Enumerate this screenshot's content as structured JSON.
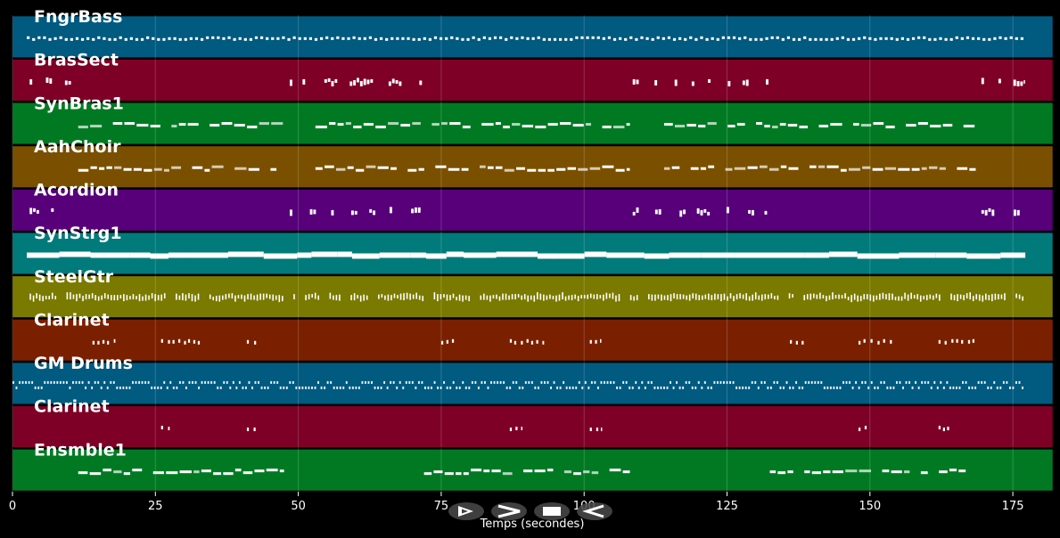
{
  "chart_data": {
    "type": "piano-roll",
    "xlabel": "Temps (secondes)",
    "xlim": [
      0,
      182
    ],
    "xticks": [
      0,
      25,
      50,
      75,
      100,
      125,
      150,
      175
    ],
    "grid": true,
    "tracks": [
      {
        "name": "FngrBass",
        "color": "#015a80",
        "segments": [
          {
            "start": 2.5,
            "end": 177,
            "kind": "bass"
          }
        ]
      },
      {
        "name": "BrasSect",
        "color": "#7e0027",
        "segments": [
          {
            "start": 3,
            "end": 10.5,
            "kind": "stabs"
          },
          {
            "start": 48.5,
            "end": 73,
            "kind": "stabs"
          },
          {
            "start": 108.5,
            "end": 134,
            "kind": "stabs"
          },
          {
            "start": 169.5,
            "end": 177,
            "kind": "stabs"
          }
        ]
      },
      {
        "name": "SynBras1",
        "color": "#007a22",
        "segments": [
          {
            "start": 11.5,
            "end": 47.5,
            "kind": "melody"
          },
          {
            "start": 53,
            "end": 108,
            "kind": "melody"
          },
          {
            "start": 114,
            "end": 168.5,
            "kind": "melody"
          }
        ]
      },
      {
        "name": "AahChoir",
        "color": "#7a5000",
        "segments": [
          {
            "start": 11.5,
            "end": 47.5,
            "kind": "melody"
          },
          {
            "start": 53,
            "end": 108,
            "kind": "melody"
          },
          {
            "start": 114,
            "end": 168.5,
            "kind": "melody"
          }
        ]
      },
      {
        "name": "Acordion",
        "color": "#57007a",
        "segments": [
          {
            "start": 3,
            "end": 10.5,
            "kind": "stabs"
          },
          {
            "start": 48.5,
            "end": 73,
            "kind": "stabs"
          },
          {
            "start": 108.5,
            "end": 134,
            "kind": "stabs"
          },
          {
            "start": 169.5,
            "end": 177,
            "kind": "stabs"
          }
        ]
      },
      {
        "name": "SynStrg1",
        "color": "#007a7a",
        "segments": [
          {
            "start": 2.5,
            "end": 177,
            "kind": "sustain"
          }
        ]
      },
      {
        "name": "SteelGtr",
        "color": "#7a7a00",
        "segments": [
          {
            "start": 3,
            "end": 177,
            "kind": "strum"
          }
        ]
      },
      {
        "name": "Clarinet",
        "color": "#7a2000",
        "segments": [
          {
            "start": 14,
            "end": 18,
            "kind": "sparse"
          },
          {
            "start": 26,
            "end": 33,
            "kind": "sparse"
          },
          {
            "start": 41,
            "end": 43,
            "kind": "sparse"
          },
          {
            "start": 75,
            "end": 78,
            "kind": "sparse"
          },
          {
            "start": 87,
            "end": 93,
            "kind": "sparse"
          },
          {
            "start": 101,
            "end": 103,
            "kind": "sparse"
          },
          {
            "start": 136,
            "end": 139,
            "kind": "sparse"
          },
          {
            "start": 148,
            "end": 154,
            "kind": "sparse"
          },
          {
            "start": 162,
            "end": 168.5,
            "kind": "sparse"
          }
        ]
      },
      {
        "name": "GM Drums",
        "color": "#015a80",
        "segments": [
          {
            "start": 0,
            "end": 177,
            "kind": "drums"
          }
        ]
      },
      {
        "name": "Clarinet",
        "color": "#7e0027",
        "segments": [
          {
            "start": 26,
            "end": 27.5,
            "kind": "sparse"
          },
          {
            "start": 41,
            "end": 43,
            "kind": "sparse"
          },
          {
            "start": 87,
            "end": 89,
            "kind": "sparse"
          },
          {
            "start": 101,
            "end": 103,
            "kind": "sparse"
          },
          {
            "start": 148,
            "end": 149.5,
            "kind": "sparse"
          },
          {
            "start": 162,
            "end": 164,
            "kind": "sparse"
          }
        ]
      },
      {
        "name": "Ensmble1",
        "color": "#007a22",
        "segments": [
          {
            "start": 11.5,
            "end": 47.5,
            "kind": "melody"
          },
          {
            "start": 72,
            "end": 108,
            "kind": "melody"
          },
          {
            "start": 132.5,
            "end": 168.5,
            "kind": "melody"
          }
        ]
      }
    ]
  },
  "controls": [
    {
      "name": "play-button",
      "symbol": "play"
    },
    {
      "name": "forward-button",
      "symbol": "chevron-right"
    },
    {
      "name": "stop-button",
      "symbol": "stop"
    },
    {
      "name": "back-button",
      "symbol": "chevron-left"
    }
  ]
}
